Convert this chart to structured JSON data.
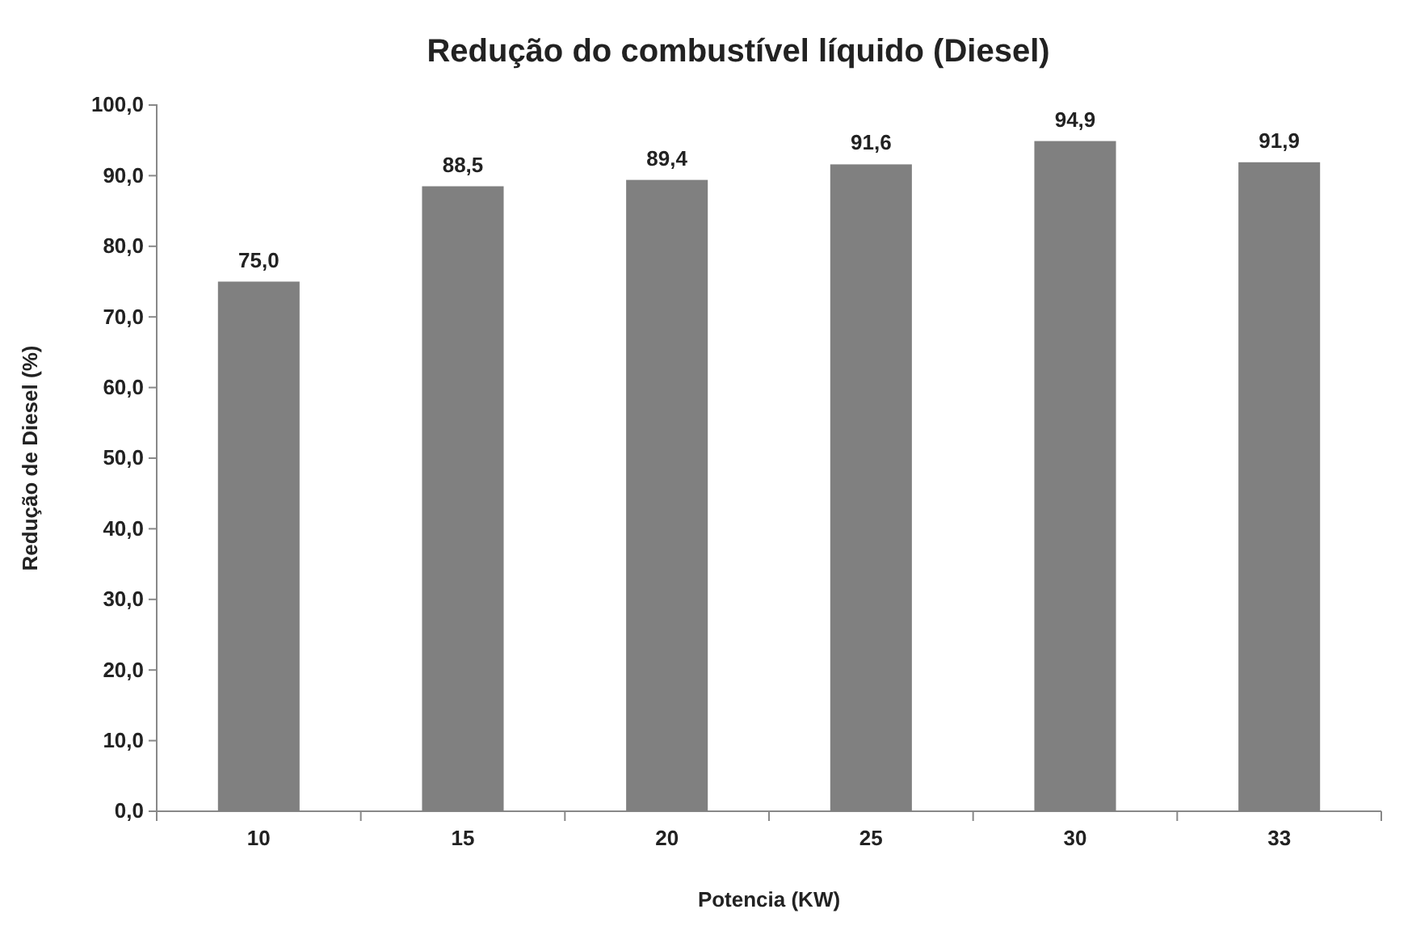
{
  "chart_data": {
    "type": "bar",
    "title": "Redução do combustível líquido (Diesel)",
    "xlabel": "Potencia (KW)",
    "ylabel": "Redução de Diesel (%)",
    "categories": [
      "10",
      "15",
      "20",
      "25",
      "30",
      "33"
    ],
    "values": [
      75.0,
      88.5,
      89.4,
      91.6,
      94.9,
      91.9
    ],
    "value_labels": [
      "75,0",
      "88,5",
      "89,4",
      "91,6",
      "94,9",
      "91,9"
    ],
    "color": "#808080",
    "ylim": [
      0,
      100
    ],
    "yticks": [
      {
        "value": 0,
        "label": "0,0"
      },
      {
        "value": 10,
        "label": "10,0"
      },
      {
        "value": 20,
        "label": "20,0"
      },
      {
        "value": 30,
        "label": "30,0"
      },
      {
        "value": 40,
        "label": "40,0"
      },
      {
        "value": 50,
        "label": "50,0"
      },
      {
        "value": 60,
        "label": "60,0"
      },
      {
        "value": 70,
        "label": "70,0"
      },
      {
        "value": 80,
        "label": "80,0"
      },
      {
        "value": 90,
        "label": "90,0"
      },
      {
        "value": 100,
        "label": "100,0"
      }
    ],
    "grid": false
  }
}
